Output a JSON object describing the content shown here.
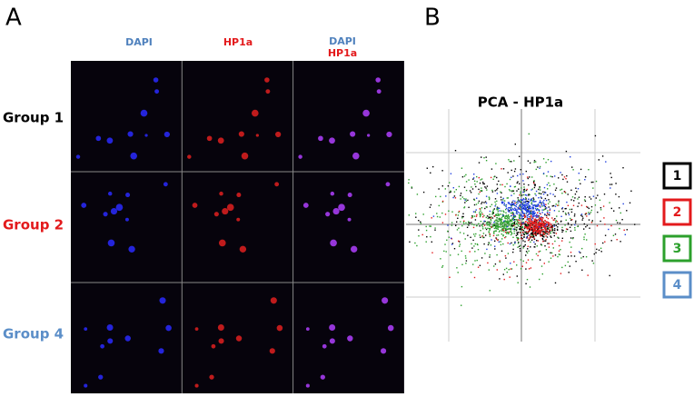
{
  "panel_a": {
    "label": "A",
    "columns": [
      "DAPI",
      "HP1a"
    ],
    "merge": {
      "line1": "DAPI",
      "line2": "HP1a"
    },
    "rows": [
      "Group 1",
      "Group 2",
      "Group 4"
    ]
  },
  "panel_b": {
    "label": "B",
    "title": "PCA - HP1a",
    "legend": [
      "1",
      "2",
      "3",
      "4"
    ]
  }
}
